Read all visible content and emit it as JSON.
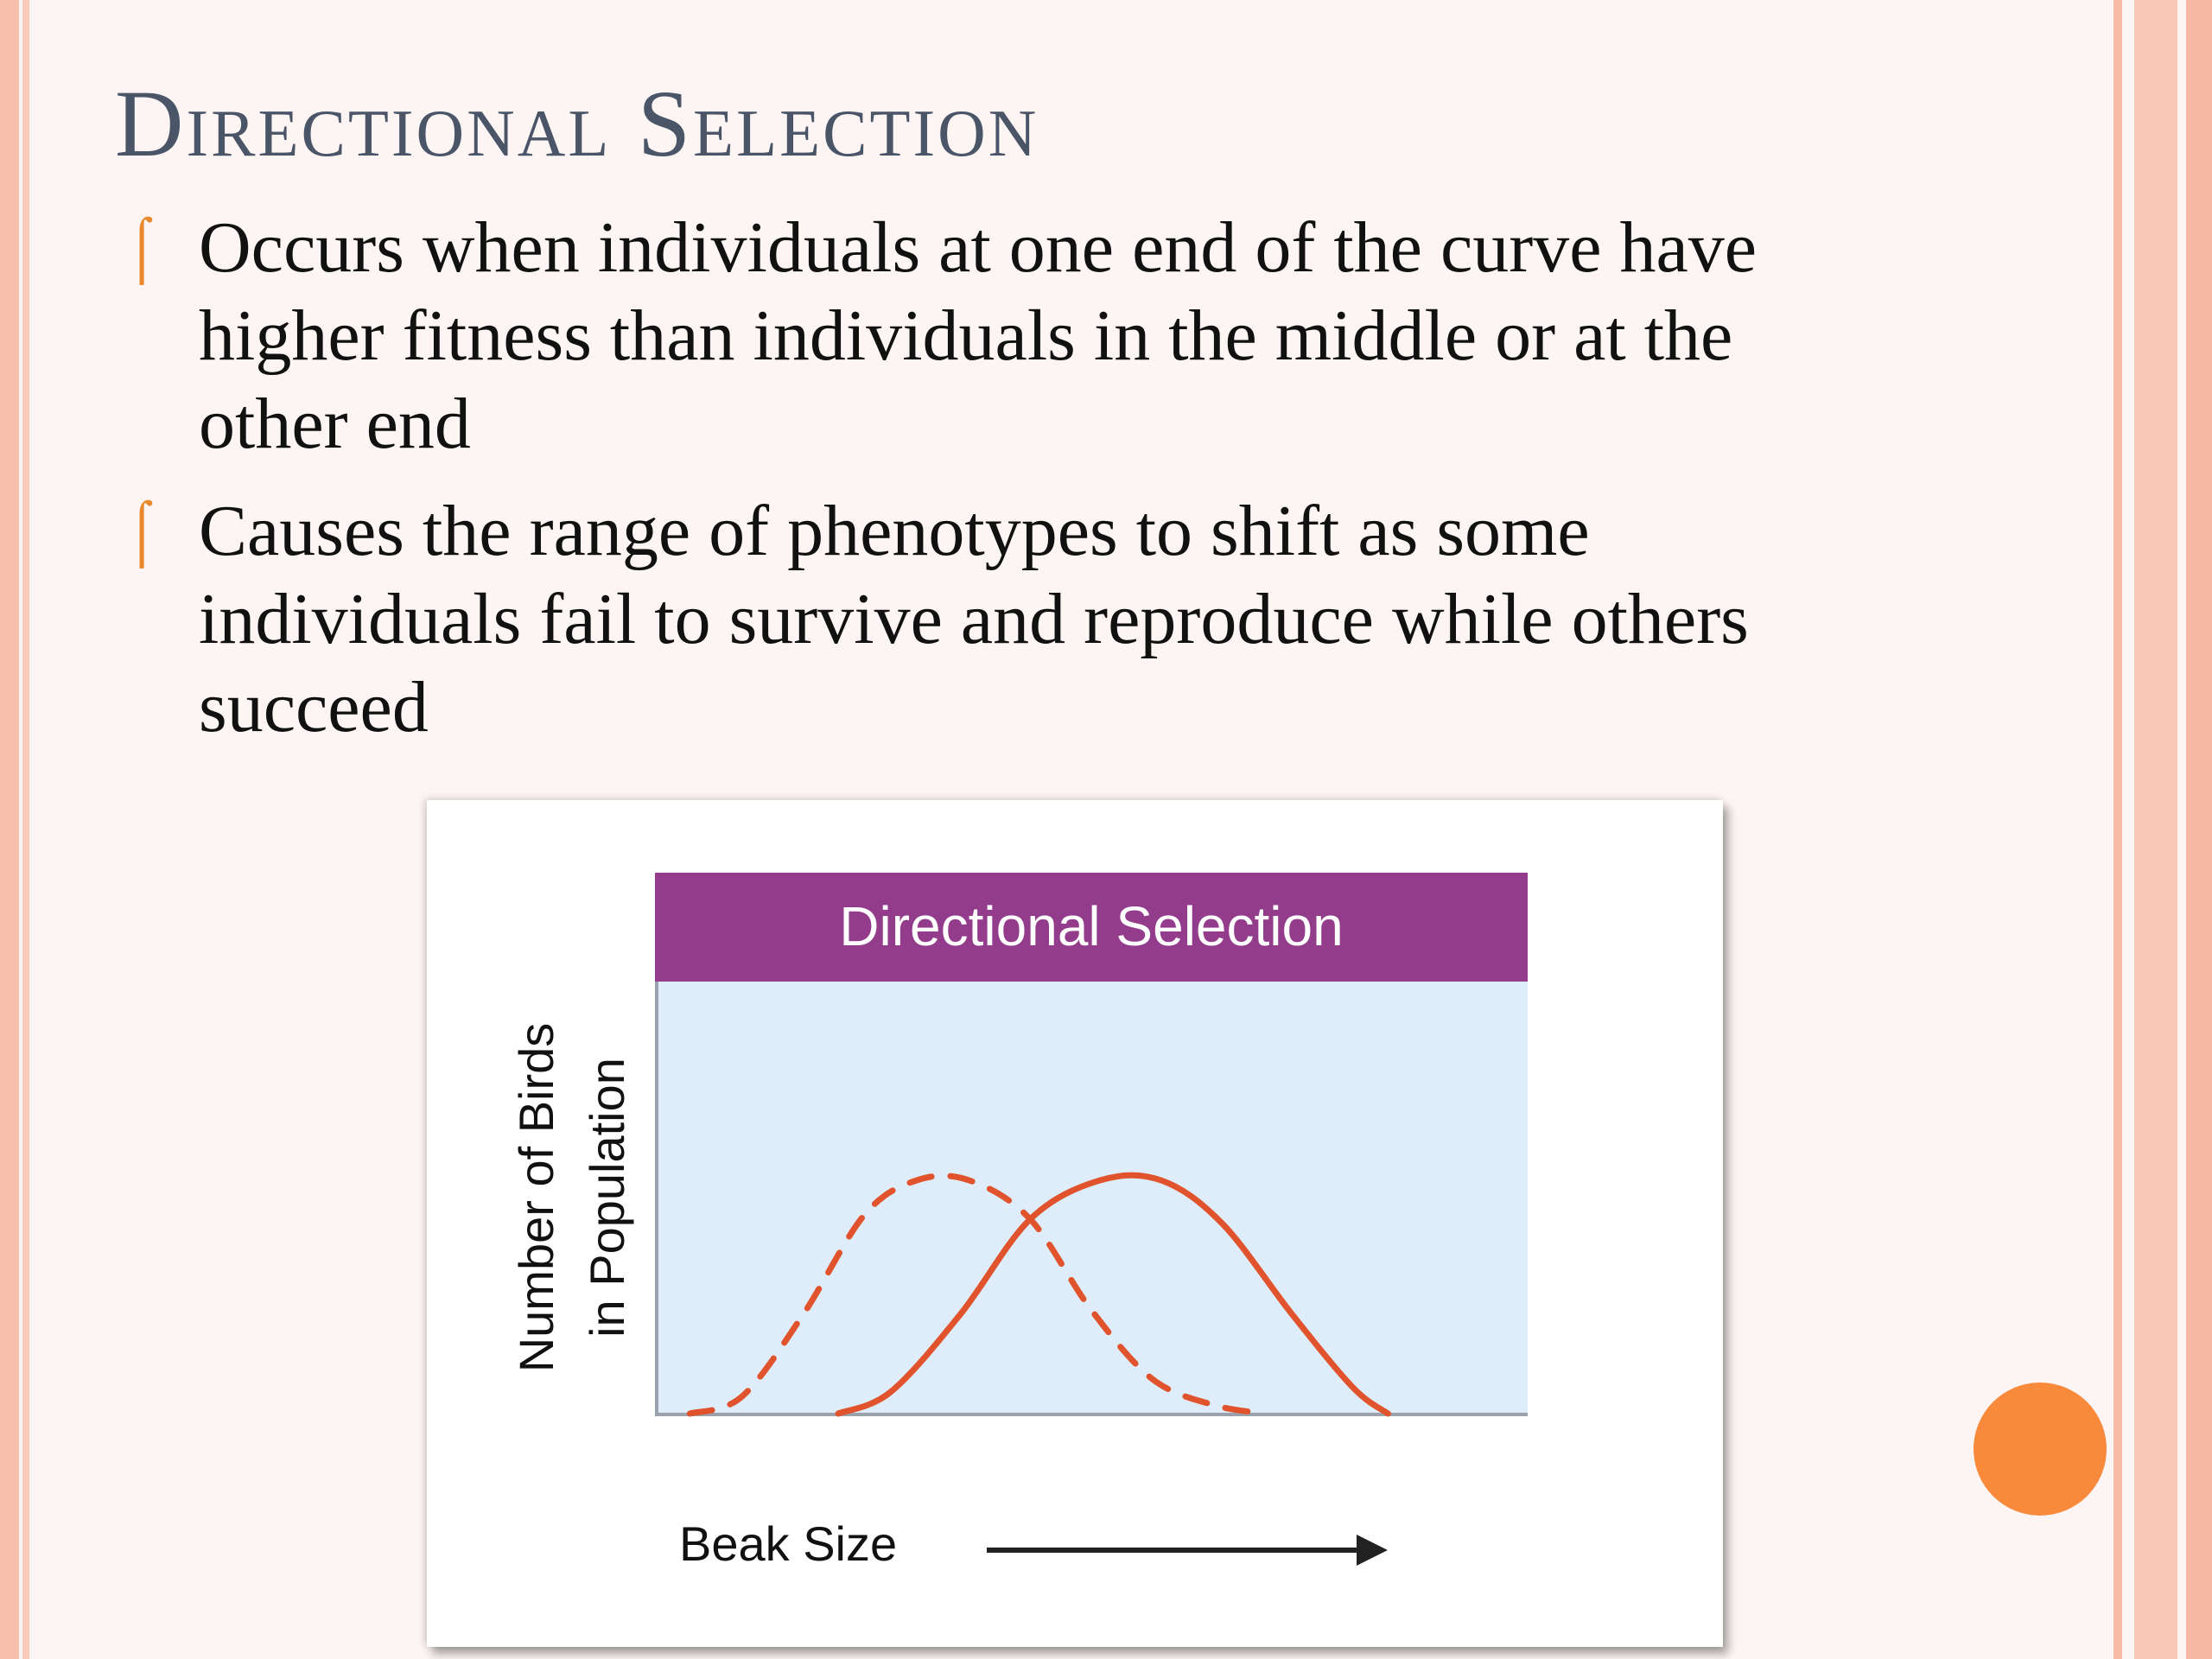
{
  "slide": {
    "title": "Directional Selection",
    "bullets": [
      {
        "marker": "⌠",
        "text": "Occurs when individuals at one end of the curve have higher fitness than individuals in the middle or at the other end"
      },
      {
        "marker": "⌠",
        "text": "Causes the range of phenotypes to shift as some individuals fail to survive and reproduce while others succeed"
      }
    ]
  },
  "colors": {
    "title": "#4a5568",
    "bullet_marker": "#e8872b",
    "chart_header": "#943c8c",
    "plot_background": "#deedf9",
    "curve": "#e0532d",
    "accent_dot": "#f9893b"
  },
  "chart_data": {
    "type": "line",
    "title": "Directional Selection",
    "xlabel": "Beak Size",
    "ylabel": "Number of Birds in Population",
    "x_tick_labels": [],
    "y_tick_labels": [],
    "grid": false,
    "legend": "none",
    "xlim": [
      0,
      10
    ],
    "ylim": [
      0,
      10
    ],
    "series": [
      {
        "style": "dashed",
        "x": [
          0.4,
          1.0,
          1.7,
          2.4,
          3.0,
          3.6,
          4.3,
          5.0,
          5.7,
          6.4,
          7.0
        ],
        "y": [
          0.0,
          0.4,
          2.3,
          4.6,
          5.4,
          5.4,
          4.5,
          2.4,
          0.8,
          0.2,
          0.0
        ]
      },
      {
        "style": "solid",
        "x": [
          2.1,
          2.7,
          3.5,
          4.3,
          5.1,
          5.8,
          6.5,
          7.3,
          8.0,
          8.4
        ],
        "y": [
          0.0,
          0.5,
          2.3,
          4.5,
          5.4,
          5.4,
          4.4,
          2.3,
          0.6,
          0.0
        ]
      }
    ]
  }
}
